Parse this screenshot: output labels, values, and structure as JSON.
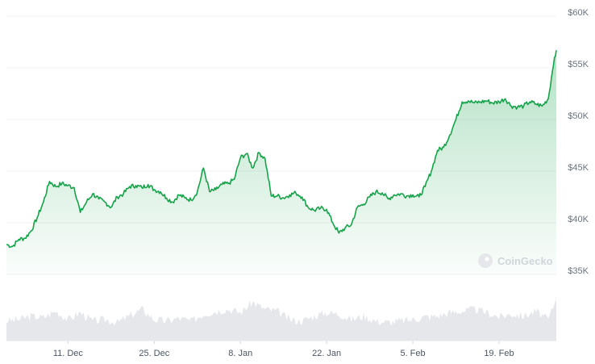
{
  "watermark": "CoinGecko",
  "chart_data": {
    "type": "area",
    "title": "",
    "xlabel": "",
    "ylabel": "",
    "ylim": [
      35000,
      60000
    ],
    "y_ticks": [
      {
        "value": 60000,
        "label": "$60K"
      },
      {
        "value": 55000,
        "label": "$55K"
      },
      {
        "value": 50000,
        "label": "$50K"
      },
      {
        "value": 45000,
        "label": "$45K"
      },
      {
        "value": 40000,
        "label": "$40K"
      },
      {
        "value": 35000,
        "label": "$35K"
      }
    ],
    "x_ticks": [
      {
        "day": 10,
        "label": "11. Dec"
      },
      {
        "day": 24,
        "label": "25. Dec"
      },
      {
        "day": 38,
        "label": "8. Jan"
      },
      {
        "day": 52,
        "label": "22. Jan"
      },
      {
        "day": 66,
        "label": "5. Feb"
      },
      {
        "day": 80,
        "label": "19. Feb"
      }
    ],
    "grid": true,
    "line_color": "#16a34a",
    "series": [
      {
        "values": [
          [
            0,
            37900
          ],
          [
            1,
            37700
          ],
          [
            2,
            38400
          ],
          [
            3,
            38500
          ],
          [
            4,
            39200
          ],
          [
            5,
            40500
          ],
          [
            6,
            42000
          ],
          [
            7,
            44000
          ],
          [
            8,
            43500
          ],
          [
            9,
            43800
          ],
          [
            10,
            43600
          ],
          [
            11,
            43400
          ],
          [
            12,
            41000
          ],
          [
            13,
            42000
          ],
          [
            14,
            42800
          ],
          [
            15,
            42300
          ],
          [
            16,
            42000
          ],
          [
            17,
            41500
          ],
          [
            18,
            42500
          ],
          [
            19,
            42800
          ],
          [
            20,
            43500
          ],
          [
            21,
            43600
          ],
          [
            22,
            43400
          ],
          [
            23,
            43700
          ],
          [
            24,
            43200
          ],
          [
            25,
            43000
          ],
          [
            26,
            42400
          ],
          [
            27,
            42000
          ],
          [
            28,
            42700
          ],
          [
            29,
            42400
          ],
          [
            30,
            42200
          ],
          [
            31,
            43000
          ],
          [
            32,
            45300
          ],
          [
            33,
            43000
          ],
          [
            34,
            43200
          ],
          [
            35,
            43700
          ],
          [
            36,
            43800
          ],
          [
            37,
            44200
          ],
          [
            38,
            46300
          ],
          [
            39,
            46700
          ],
          [
            40,
            45300
          ],
          [
            41,
            46800
          ],
          [
            42,
            46200
          ],
          [
            43,
            42600
          ],
          [
            44,
            42600
          ],
          [
            45,
            42400
          ],
          [
            46,
            42700
          ],
          [
            47,
            42900
          ],
          [
            48,
            42500
          ],
          [
            49,
            41500
          ],
          [
            50,
            41200
          ],
          [
            51,
            41400
          ],
          [
            52,
            41300
          ],
          [
            53,
            40000
          ],
          [
            54,
            39000
          ],
          [
            55,
            39500
          ],
          [
            56,
            39800
          ],
          [
            57,
            41500
          ],
          [
            58,
            41800
          ],
          [
            59,
            42500
          ],
          [
            60,
            43000
          ],
          [
            61,
            42900
          ],
          [
            62,
            42300
          ],
          [
            63,
            42700
          ],
          [
            64,
            42800
          ],
          [
            65,
            42600
          ],
          [
            66,
            42700
          ],
          [
            67,
            42500
          ],
          [
            68,
            43500
          ],
          [
            69,
            45000
          ],
          [
            70,
            47000
          ],
          [
            71,
            47300
          ],
          [
            72,
            48500
          ],
          [
            73,
            50000
          ],
          [
            74,
            51700
          ],
          [
            75,
            51800
          ],
          [
            76,
            51600
          ],
          [
            77,
            51700
          ],
          [
            78,
            51800
          ],
          [
            79,
            51600
          ],
          [
            80,
            51700
          ],
          [
            81,
            52000
          ],
          [
            82,
            51300
          ],
          [
            83,
            51200
          ],
          [
            84,
            51300
          ],
          [
            85,
            51700
          ],
          [
            86,
            51500
          ],
          [
            87,
            51300
          ],
          [
            88,
            52000
          ],
          [
            88.5,
            54000
          ],
          [
            89,
            56000
          ],
          [
            89.3,
            56700
          ]
        ]
      }
    ],
    "volume_values": [
      [
        0,
        28
      ],
      [
        2,
        30
      ],
      [
        4,
        35
      ],
      [
        6,
        33
      ],
      [
        8,
        42
      ],
      [
        10,
        30
      ],
      [
        12,
        40
      ],
      [
        14,
        28
      ],
      [
        16,
        30
      ],
      [
        18,
        26
      ],
      [
        20,
        35
      ],
      [
        22,
        45
      ],
      [
        24,
        30
      ],
      [
        26,
        28
      ],
      [
        28,
        32
      ],
      [
        30,
        28
      ],
      [
        32,
        38
      ],
      [
        34,
        42
      ],
      [
        36,
        45
      ],
      [
        38,
        40
      ],
      [
        40,
        55
      ],
      [
        42,
        45
      ],
      [
        44,
        42
      ],
      [
        46,
        30
      ],
      [
        48,
        28
      ],
      [
        50,
        35
      ],
      [
        52,
        40
      ],
      [
        54,
        38
      ],
      [
        56,
        30
      ],
      [
        58,
        35
      ],
      [
        60,
        28
      ],
      [
        62,
        26
      ],
      [
        64,
        28
      ],
      [
        66,
        30
      ],
      [
        68,
        34
      ],
      [
        70,
        35
      ],
      [
        72,
        40
      ],
      [
        74,
        42
      ],
      [
        76,
        45
      ],
      [
        78,
        40
      ],
      [
        80,
        34
      ],
      [
        82,
        38
      ],
      [
        84,
        35
      ],
      [
        86,
        42
      ],
      [
        88,
        30
      ],
      [
        89.3,
        60
      ]
    ]
  }
}
